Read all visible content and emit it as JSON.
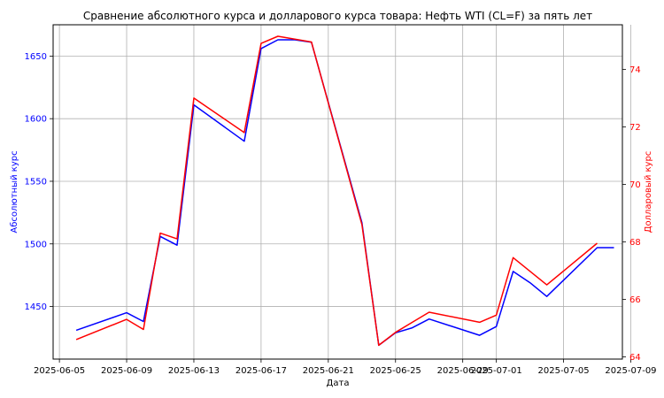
{
  "chart_data": {
    "type": "line",
    "title": "Сравнение абсолютного курса и долларового курса товара: Нефть WTI (CL=F) за пять лет",
    "xlabel": "Дата",
    "ylabel_left": "Абсолютный курс",
    "ylabel_right": "Долларовый курс",
    "x_ticks": [
      "2025-06-05",
      "2025-06-09",
      "2025-06-13",
      "2025-06-17",
      "2025-06-21",
      "2025-06-25",
      "2025-06-29",
      "2025-07-01",
      "2025-07-05",
      "2025-07-09"
    ],
    "x_range": [
      "2025-06-04T15:00",
      "2025-07-08T12:00"
    ],
    "y_left_ticks": [
      1450,
      1500,
      1550,
      1600,
      1650
    ],
    "y_left_range": [
      1408,
      1675
    ],
    "y_right_ticks": [
      64,
      66,
      68,
      70,
      72,
      74
    ],
    "y_right_range": [
      63.92,
      75.55
    ],
    "grid": true,
    "colors": {
      "left_axis": "#0000ff",
      "right_axis": "#ff0000",
      "text": "#000000",
      "grid": "#b0b0b0"
    },
    "series": [
      {
        "axis": "left",
        "color": "#0000ff",
        "points": [
          [
            "2025-06-06",
            1431
          ],
          [
            "2025-06-09",
            1445
          ],
          [
            "2025-06-10",
            1438
          ],
          [
            "2025-06-11",
            1506
          ],
          [
            "2025-06-12",
            1499
          ],
          [
            "2025-06-13",
            1611
          ],
          [
            "2025-06-16",
            1582
          ],
          [
            "2025-06-17",
            1656
          ],
          [
            "2025-06-18",
            1663
          ],
          [
            "2025-06-19",
            1663
          ],
          [
            "2025-06-20",
            1661
          ],
          [
            "2025-06-23",
            1517
          ],
          [
            "2025-06-24",
            1419
          ],
          [
            "2025-06-25",
            1429
          ],
          [
            "2025-06-26",
            1433
          ],
          [
            "2025-06-27",
            1440
          ],
          [
            "2025-06-30",
            1427
          ],
          [
            "2025-07-01",
            1434
          ],
          [
            "2025-07-02",
            1478
          ],
          [
            "2025-07-03",
            1469
          ],
          [
            "2025-07-04",
            1458
          ],
          [
            "2025-07-07",
            1497
          ],
          [
            "2025-07-08",
            1497
          ]
        ]
      },
      {
        "axis": "right",
        "color": "#ff0000",
        "points": [
          [
            "2025-06-06",
            64.6
          ],
          [
            "2025-06-09",
            65.3
          ],
          [
            "2025-06-10",
            64.95
          ],
          [
            "2025-06-11",
            68.3
          ],
          [
            "2025-06-12",
            68.1
          ],
          [
            "2025-06-13",
            73.0
          ],
          [
            "2025-06-16",
            71.8
          ],
          [
            "2025-06-17",
            74.9
          ],
          [
            "2025-06-18",
            75.15
          ],
          [
            "2025-06-19",
            75.05
          ],
          [
            "2025-06-20",
            74.95
          ],
          [
            "2025-06-23",
            68.6
          ],
          [
            "2025-06-24",
            64.4
          ],
          [
            "2025-06-25",
            64.85
          ],
          [
            "2025-06-26",
            65.2
          ],
          [
            "2025-06-27",
            65.55
          ],
          [
            "2025-06-30",
            65.2
          ],
          [
            "2025-07-01",
            65.45
          ],
          [
            "2025-07-02",
            67.45
          ],
          [
            "2025-07-04",
            66.5
          ],
          [
            "2025-07-07",
            67.95
          ]
        ]
      }
    ]
  }
}
